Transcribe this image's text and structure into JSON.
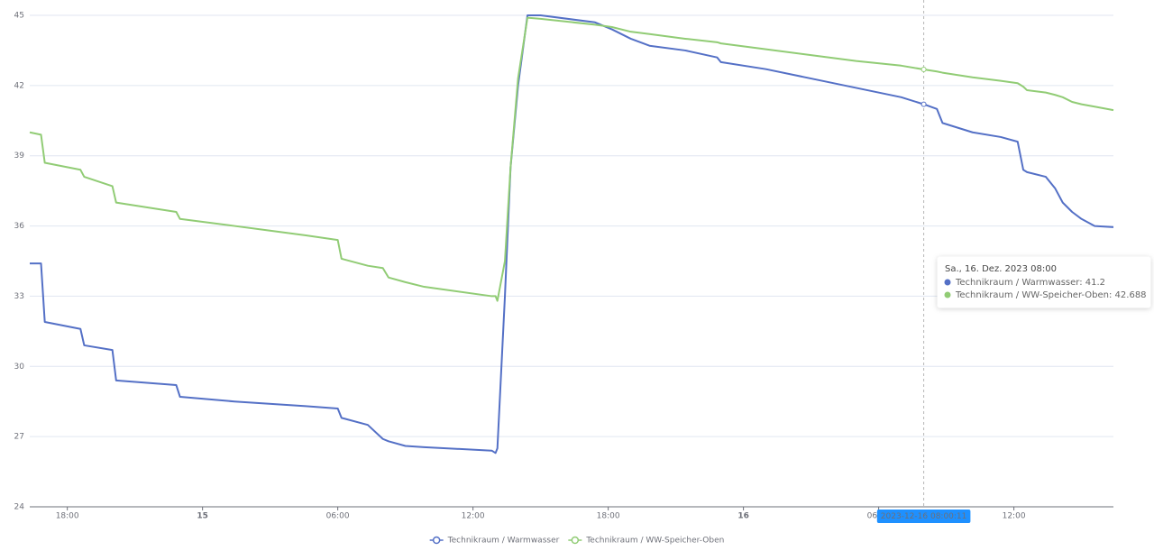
{
  "chart_data": {
    "type": "line",
    "x": [
      "2023-12-14 16:20",
      "2023-12-14 16:50",
      "2023-12-14 17:00",
      "2023-12-14 18:35",
      "2023-12-14 18:45",
      "2023-12-14 20:00",
      "2023-12-14 20:10",
      "2023-12-14 22:50",
      "2023-12-14 23:00",
      "2023-12-15 01:25",
      "2023-12-15 04:35",
      "2023-12-15 06:00",
      "2023-12-15 06:10",
      "2023-12-15 07:20",
      "2023-12-15 08:00",
      "2023-12-15 08:15",
      "2023-12-15 09:00",
      "2023-12-15 09:50",
      "2023-12-15 12:50",
      "2023-12-15 13:00",
      "2023-12-15 13:05",
      "2023-12-15 13:25",
      "2023-12-15 13:40",
      "2023-12-15 14:00",
      "2023-12-15 14:25",
      "2023-12-15 15:00",
      "2023-12-15 17:25",
      "2023-12-15 18:10",
      "2023-12-15 19:00",
      "2023-12-15 19:50",
      "2023-12-15 21:25",
      "2023-12-15 22:50",
      "2023-12-15 23:00",
      "2023-12-16 01:00",
      "2023-12-16 03:00",
      "2023-12-16 05:00",
      "2023-12-16 07:00",
      "2023-12-16 08:00",
      "2023-12-16 08:35",
      "2023-12-16 08:50",
      "2023-12-16 10:10",
      "2023-12-16 11:25",
      "2023-12-16 12:10",
      "2023-12-16 12:25",
      "2023-12-16 12:35",
      "2023-12-16 13:25",
      "2023-12-16 13:50",
      "2023-12-16 14:10",
      "2023-12-16 14:35",
      "2023-12-16 15:00",
      "2023-12-16 15:35",
      "2023-12-16 16:25"
    ],
    "series": [
      {
        "name": "Technikraum / Warmwasser",
        "color": "#5470c6",
        "values": [
          34.4,
          34.4,
          31.9,
          31.6,
          30.9,
          30.7,
          29.4,
          29.2,
          28.7,
          28.5,
          28.3,
          28.2,
          27.8,
          27.5,
          26.9,
          26.8,
          26.6,
          26.55,
          26.4,
          26.3,
          26.5,
          33.0,
          38.5,
          42.0,
          45.0,
          45.0,
          44.7,
          44.4,
          44.0,
          43.7,
          43.5,
          43.2,
          43.0,
          42.7,
          42.3,
          41.9,
          41.5,
          41.2,
          41.0,
          40.4,
          40.0,
          39.8,
          39.6,
          38.4,
          38.3,
          38.1,
          37.6,
          37.0,
          36.6,
          36.3,
          36.0,
          35.95
        ]
      },
      {
        "name": "Technikraum / WW-Speicher-Oben",
        "color": "#91cc75",
        "values": [
          40.0,
          39.9,
          38.7,
          38.4,
          38.1,
          37.7,
          37.0,
          36.6,
          36.3,
          36.0,
          35.6,
          35.4,
          34.6,
          34.3,
          34.2,
          33.8,
          33.6,
          33.4,
          33.0,
          33.0,
          32.8,
          34.5,
          38.5,
          42.3,
          44.9,
          44.85,
          44.6,
          44.5,
          44.3,
          44.2,
          44.0,
          43.85,
          43.8,
          43.55,
          43.3,
          43.05,
          42.85,
          42.688,
          42.6,
          42.55,
          42.35,
          42.2,
          42.1,
          41.95,
          41.8,
          41.7,
          41.6,
          41.5,
          41.3,
          41.2,
          41.1,
          40.95
        ]
      }
    ],
    "xlim": [
      "2023-12-14 16:20",
      "2023-12-16 16:25"
    ],
    "xticks": [
      {
        "value": "2023-12-14 18:00",
        "label": "18:00"
      },
      {
        "value": "2023-12-15 00:00",
        "label": "15"
      },
      {
        "value": "2023-12-15 06:00",
        "label": "06:00"
      },
      {
        "value": "2023-12-15 12:00",
        "label": "12:00"
      },
      {
        "value": "2023-12-15 18:00",
        "label": "18:00"
      },
      {
        "value": "2023-12-16 00:00",
        "label": "16"
      },
      {
        "value": "2023-12-16 06:00",
        "label": "06:00"
      },
      {
        "value": "2023-12-16 12:00",
        "label": "12:00"
      }
    ],
    "ylim": [
      24,
      45
    ],
    "yticks": [
      24,
      27,
      30,
      33,
      36,
      39,
      42,
      45
    ],
    "grid": true,
    "legend": "bottom",
    "axis_pointer": {
      "x": "2023-12-16 08:00",
      "label": "2023-12-16 08:00:11"
    },
    "tooltip": {
      "title": "Sa., 16. Dez. 2023 08:00",
      "items": [
        "Technikraum / Warmwasser: 41.2",
        "Technikraum / WW-Speicher-Oben: 42.688"
      ]
    }
  }
}
